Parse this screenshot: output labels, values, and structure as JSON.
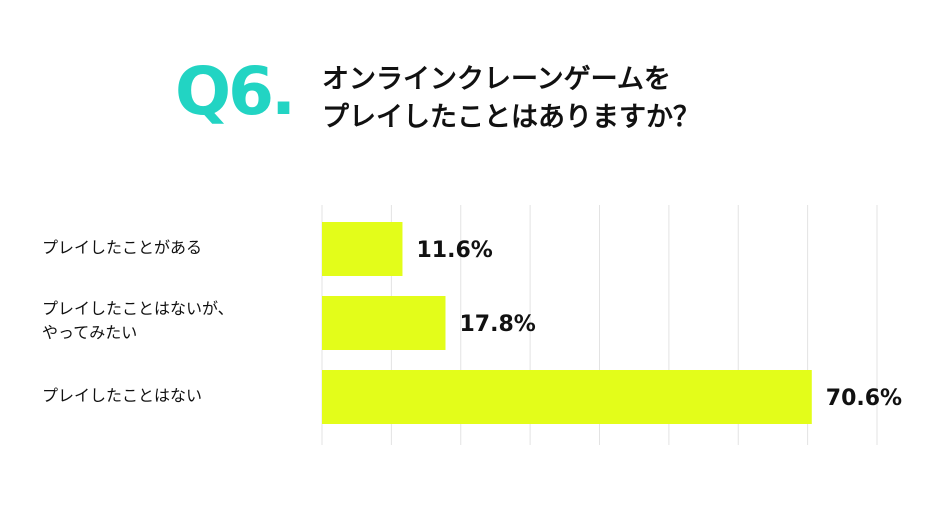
{
  "question": {
    "number": "Q6.",
    "title_line1": "オンラインクレーンゲームを",
    "title_line2": "プレイしたことはありますか？"
  },
  "colors": {
    "accent": "#22d4c3",
    "bar": "#e3fd1a",
    "grid": "#e3e3e3"
  },
  "chart_data": {
    "type": "bar",
    "orientation": "horizontal",
    "categories": [
      [
        "プレイしたことがある"
      ],
      [
        "プレイしたことはないが、",
        "やってみたい"
      ],
      [
        "プレイしたことはない"
      ]
    ],
    "values": [
      11.6,
      17.8,
      70.6
    ],
    "value_labels": [
      "11.6%",
      "17.8%",
      "70.6%"
    ],
    "xlim": [
      0,
      80
    ],
    "grid": true,
    "legend": "none"
  }
}
